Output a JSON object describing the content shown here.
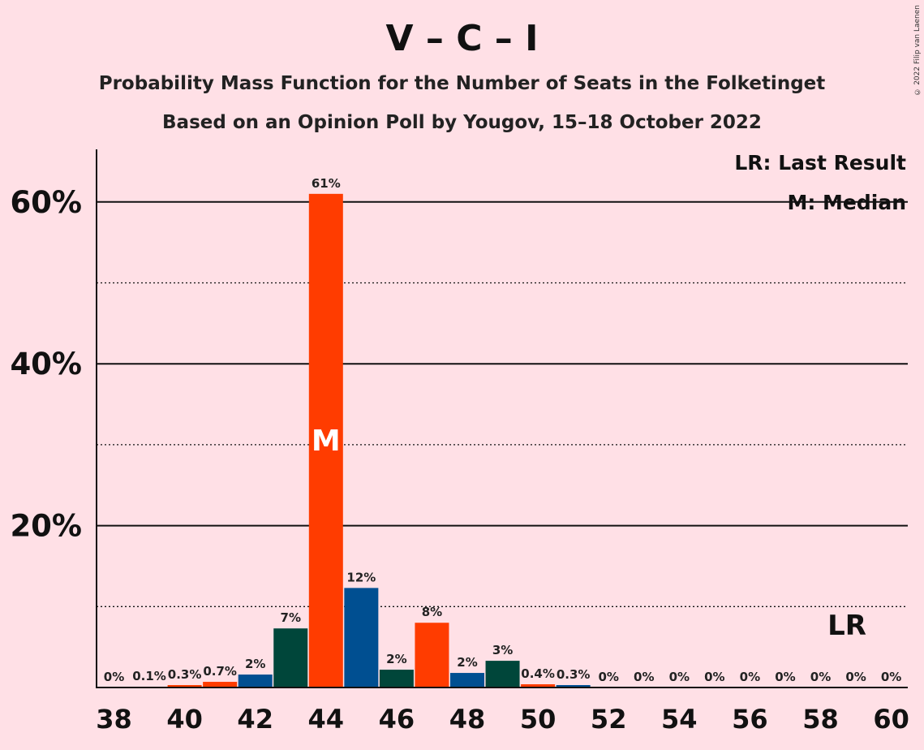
{
  "chart_data": {
    "type": "bar",
    "title": "V – C – I",
    "subtitle_1": "Probability Mass Function for the Number of Seats in the Folketinget",
    "subtitle_2": "Based on an Opinion Poll by Yougov, 15–18 October 2022",
    "copyright": "© 2022 Filip van Laenen",
    "legend": {
      "lr": "LR: Last Result",
      "m": "M: Median",
      "placement": "top-right"
    },
    "x": [
      38,
      39,
      40,
      41,
      42,
      43,
      44,
      45,
      46,
      47,
      48,
      49,
      50,
      51,
      52,
      53,
      54,
      55,
      56,
      57,
      58,
      59,
      60
    ],
    "values": [
      0,
      0.1,
      0.3,
      0.7,
      1.6,
      7.3,
      61,
      12.3,
      2.2,
      8,
      1.8,
      3.3,
      0.4,
      0.3,
      0,
      0,
      0,
      0,
      0,
      0,
      0,
      0,
      0
    ],
    "labels": [
      "0%",
      "0.1%",
      "0.3%",
      "0.7%",
      "2%",
      "7%",
      "61%",
      "12%",
      "2%",
      "8%",
      "2%",
      "3%",
      "0.4%",
      "0.3%",
      "0%",
      "0%",
      "0%",
      "0%",
      "0%",
      "0%",
      "0%",
      "0%",
      "0%"
    ],
    "bar_colors": [
      "#ff3c00",
      "#004f91",
      "#ff3c00",
      "#ff3c00",
      "#004f91",
      "#00463a",
      "#ff3c00",
      "#004f91",
      "#00463a",
      "#ff3c00",
      "#004f91",
      "#00463a",
      "#ff3c00",
      "#004f91",
      "#ff3c00",
      "#004f91",
      "#00463a",
      "#ff3c00",
      "#004f91",
      "#00463a",
      "#ff3c00",
      "#004f91",
      "#00463a"
    ],
    "x_ticks": [
      38,
      40,
      42,
      44,
      46,
      48,
      50,
      52,
      54,
      56,
      58,
      60
    ],
    "y_ticks": [
      20,
      40,
      60
    ],
    "y_tick_labels": [
      "20%",
      "40%",
      "60%"
    ],
    "ylim": [
      0,
      66.5
    ],
    "grid_solid": [
      20,
      40,
      60
    ],
    "grid_dotted": [
      10,
      30,
      50
    ],
    "median": {
      "x": 44,
      "marker": "M"
    },
    "last_result": {
      "x": 59,
      "marker": "LR"
    }
  }
}
